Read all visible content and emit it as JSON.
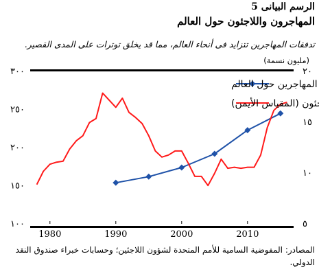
{
  "header": {
    "label": "الرسم البيانى 5",
    "title": "المهاجرون واللاجئون حول العالم",
    "subtitle": "تدفقات المهاجرين تتزايد فى أنحاء العالم، مما قد يخلق توترات على المدى القصير.",
    "unit": "(مليون نسمة)"
  },
  "source": "المصادر: المفوضية السامية للأمم المتحدة لشؤون اللاجئين؛ وحسابات خبراء صندوق النقد الدولي.",
  "colors": {
    "migrants": "#1f52a8",
    "refugees": "#ff1a1a"
  },
  "chart_data": {
    "type": "line",
    "title": "المهاجرون واللاجئون حول العالم",
    "subtitle": "تدفقات المهاجرين تتزايد فى أنحاء العالم، مما قد يخلق توترات على المدى القصير.",
    "unit": "(مليون نسمة)",
    "xlim": [
      1977,
      2017
    ],
    "x_ticks": [
      "1980",
      "1990",
      "2000",
      "2010"
    ],
    "left_axis": {
      "ylim": [
        100,
        300
      ],
      "ticks": [
        "١٠٠",
        "١٥٠",
        "٢٠٠",
        "٢٥٠",
        "٣٠٠"
      ]
    },
    "right_axis": {
      "ylim": [
        5,
        20
      ],
      "ticks": [
        "٥",
        "١٠",
        "١٥",
        "٢٠"
      ]
    },
    "grid": false,
    "legend_position": "top",
    "series": [
      {
        "name": "إجمالي المهاجرين حول العالم",
        "axis": "left",
        "marker": "diamond",
        "x": [
          1990,
          1995,
          2000,
          2005,
          2010,
          2015
        ],
        "values": [
          153,
          161,
          173,
          191,
          222,
          244
        ]
      },
      {
        "name": "اللاجئون (المقياس الأيمن)",
        "axis": "right",
        "marker": "none",
        "x": [
          1978,
          1979,
          1980,
          1981,
          1982,
          1983,
          1984,
          1985,
          1986,
          1987,
          1988,
          1989,
          1990,
          1991,
          1992,
          1993,
          1994,
          1995,
          1996,
          1997,
          1998,
          1999,
          2000,
          2001,
          2002,
          2003,
          2004,
          2005,
          2006,
          2007,
          2008,
          2009,
          2010,
          2011,
          2012,
          2013,
          2014,
          2015,
          2016
        ],
        "values": [
          8.8,
          10.1,
          10.8,
          11.0,
          11.1,
          12.3,
          13.1,
          13.6,
          14.9,
          15.3,
          17.8,
          17.1,
          16.4,
          17.3,
          15.9,
          15.4,
          14.8,
          13.6,
          12.1,
          11.5,
          11.7,
          12.1,
          12.1,
          10.9,
          9.6,
          9.6,
          8.7,
          9.9,
          11.3,
          10.4,
          10.5,
          10.4,
          10.5,
          10.5,
          11.7,
          14.4,
          16.1,
          16.7,
          16.9
        ]
      }
    ]
  }
}
